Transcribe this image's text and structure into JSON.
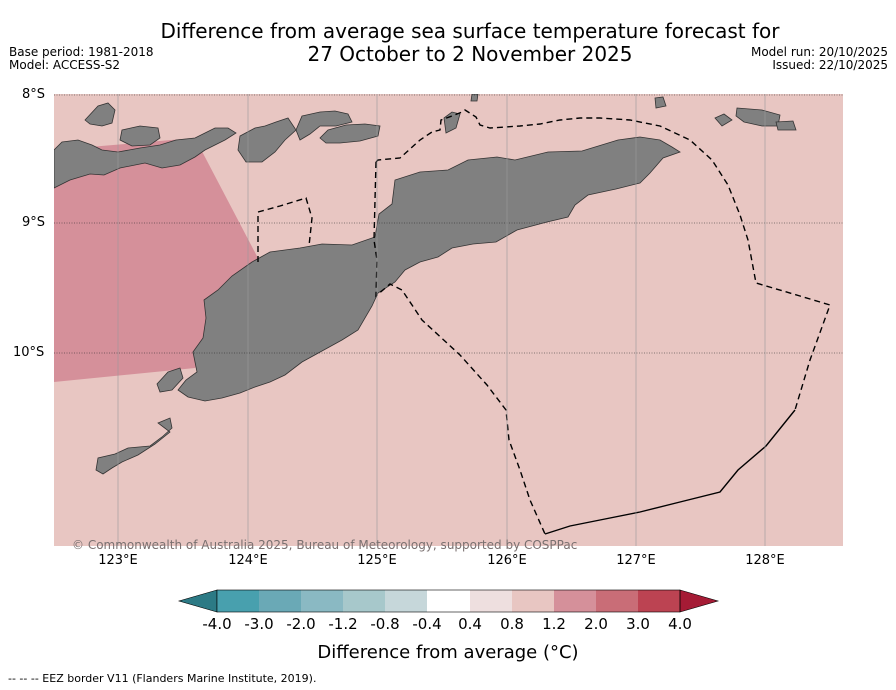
{
  "header": {
    "title_line1": "Difference from average sea surface temperature forecast for",
    "title_line2": "27 October to 2 November 2025",
    "base_period": "Base period: 1981-2018",
    "model": "Model: ACCESS-S2",
    "model_run": "Model run: 20/10/2025",
    "issued": "Issued: 22/10/2025"
  },
  "map": {
    "lat_labels": [
      "8°S",
      "9°S",
      "10°S"
    ],
    "lon_labels": [
      "123°E",
      "124°E",
      "125°E",
      "126°E",
      "127°E",
      "128°E"
    ],
    "copyright": "© Commonwealth of Australia 2025, Bureau of Meteorology, supported by COSPPac",
    "colors": {
      "ocean_anomaly_0_8_to_1_2": "#e8c6c2",
      "ocean_anomaly_1_2_to_2_0": "#d5909a",
      "land": "#808080",
      "eez_border": "#000000"
    },
    "layers": [
      "ocean-anomaly",
      "land",
      "eez-border",
      "graticule"
    ]
  },
  "colorbar": {
    "labels": [
      "-4.0",
      "-3.0",
      "-2.0",
      "-1.2",
      "-0.8",
      "-0.4",
      "0.4",
      "0.8",
      "1.2",
      "2.0",
      "3.0",
      "4.0"
    ],
    "colors": [
      "#2c7a85",
      "#48a0ae",
      "#6aa9b6",
      "#8ab9c3",
      "#a7c8cb",
      "#c6d7da",
      "#ffffff",
      "#eedfdf",
      "#e8c6c2",
      "#d5909a",
      "#c96d77",
      "#bc4352",
      "#a51b35"
    ],
    "title": "Difference from average (°C)"
  },
  "footnote": "--  --  -- EEZ border V11 (Flanders Marine Institute, 2019)."
}
